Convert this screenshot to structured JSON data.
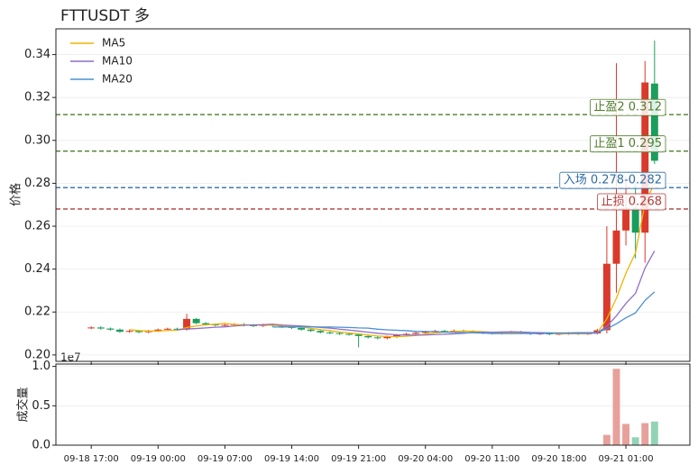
{
  "chart_data": {
    "type": "candlestick",
    "title": "FTTUSDT  多",
    "ylabel": "价格",
    "up_color": "#d93a2b",
    "down_color": "#1a9e5c",
    "grid": true,
    "legend": "upper left",
    "categories": [
      "09-18 17:00",
      "09-18 18:00",
      "09-18 19:00",
      "09-18 20:00",
      "09-18 21:00",
      "09-18 22:00",
      "09-18 23:00",
      "09-19 00:00",
      "09-19 01:00",
      "09-19 02:00",
      "09-19 03:00",
      "09-19 04:00",
      "09-19 05:00",
      "09-19 06:00",
      "09-19 07:00",
      "09-19 08:00",
      "09-19 09:00",
      "09-19 10:00",
      "09-19 11:00",
      "09-19 12:00",
      "09-19 13:00",
      "09-19 14:00",
      "09-19 15:00",
      "09-19 16:00",
      "09-19 17:00",
      "09-19 18:00",
      "09-19 19:00",
      "09-19 20:00",
      "09-19 21:00",
      "09-19 22:00",
      "09-19 23:00",
      "09-20 00:00",
      "09-20 01:00",
      "09-20 02:00",
      "09-20 03:00",
      "09-20 04:00",
      "09-20 05:00",
      "09-20 06:00",
      "09-20 07:00",
      "09-20 08:00",
      "09-20 09:00",
      "09-20 10:00",
      "09-20 11:00",
      "09-20 12:00",
      "09-20 13:00",
      "09-20 14:00",
      "09-20 15:00",
      "09-20 16:00",
      "09-20 17:00",
      "09-20 18:00",
      "09-20 19:00",
      "09-20 20:00",
      "09-20 21:00",
      "09-20 22:00",
      "09-20 23:00",
      "09-21 00:00",
      "09-21 01:00",
      "09-21 02:00",
      "09-21 03:00",
      "09-21 04:00"
    ],
    "xticks": [
      "09-18 17:00",
      "09-19 00:00",
      "09-19 07:00",
      "09-19 14:00",
      "09-19 21:00",
      "09-20 04:00",
      "09-20 11:00",
      "09-20 18:00",
      "09-21 01:00"
    ],
    "open": [
      0.2125,
      0.2128,
      0.2123,
      0.2118,
      0.2108,
      0.2112,
      0.2106,
      0.2112,
      0.2118,
      0.2122,
      0.2118,
      0.2168,
      0.2148,
      0.2142,
      0.2138,
      0.214,
      0.2143,
      0.2138,
      0.2135,
      0.214,
      0.2136,
      0.213,
      0.2126,
      0.2118,
      0.2112,
      0.2105,
      0.2102,
      0.2098,
      0.2095,
      0.2088,
      0.2082,
      0.2078,
      0.2085,
      0.2092,
      0.2098,
      0.2103,
      0.2108,
      0.2112,
      0.211,
      0.2113,
      0.211,
      0.2106,
      0.2102,
      0.21,
      0.2104,
      0.2107,
      0.2102,
      0.2098,
      0.21,
      0.2097,
      0.2099,
      0.2101,
      0.2098,
      0.21,
      0.2115,
      0.2425,
      0.258,
      0.2685,
      0.257,
      0.3265
    ],
    "high": [
      0.2133,
      0.2133,
      0.2128,
      0.2123,
      0.2117,
      0.2117,
      0.2117,
      0.2123,
      0.2127,
      0.2127,
      0.2192,
      0.2172,
      0.2153,
      0.2147,
      0.2145,
      0.2148,
      0.2148,
      0.2143,
      0.2145,
      0.2145,
      0.2141,
      0.2135,
      0.2131,
      0.2123,
      0.2117,
      0.211,
      0.2107,
      0.2103,
      0.21,
      0.2093,
      0.2087,
      0.209,
      0.2097,
      0.2103,
      0.2108,
      0.2113,
      0.2117,
      0.2117,
      0.2118,
      0.2118,
      0.2115,
      0.2111,
      0.2107,
      0.2109,
      0.2112,
      0.2112,
      0.2107,
      0.2105,
      0.2105,
      0.2104,
      0.2106,
      0.2106,
      0.2105,
      0.2122,
      0.26,
      0.336,
      0.283,
      0.28,
      0.337,
      0.3465
    ],
    "low": [
      0.212,
      0.2118,
      0.2113,
      0.2103,
      0.2103,
      0.2101,
      0.2101,
      0.2107,
      0.2113,
      0.2113,
      0.2113,
      0.2143,
      0.2137,
      0.2133,
      0.2133,
      0.2135,
      0.2133,
      0.213,
      0.213,
      0.2131,
      0.2125,
      0.2121,
      0.2113,
      0.2107,
      0.21,
      0.2097,
      0.2093,
      0.209,
      0.2035,
      0.2077,
      0.2073,
      0.2073,
      0.208,
      0.2087,
      0.2093,
      0.2098,
      0.2103,
      0.2105,
      0.2105,
      0.2105,
      0.2101,
      0.2097,
      0.2095,
      0.2095,
      0.2099,
      0.2097,
      0.2093,
      0.2093,
      0.2092,
      0.2092,
      0.2094,
      0.2093,
      0.2093,
      0.2095,
      0.21,
      0.229,
      0.251,
      0.245,
      0.243,
      0.289
    ],
    "close": [
      0.2128,
      0.2123,
      0.2118,
      0.2108,
      0.2112,
      0.2106,
      0.2112,
      0.2118,
      0.2122,
      0.2118,
      0.2168,
      0.2148,
      0.2142,
      0.2138,
      0.214,
      0.2143,
      0.2138,
      0.2135,
      0.214,
      0.2136,
      0.213,
      0.2126,
      0.2118,
      0.2112,
      0.2105,
      0.2102,
      0.2098,
      0.2095,
      0.2088,
      0.2082,
      0.2078,
      0.2085,
      0.2092,
      0.2098,
      0.2103,
      0.2108,
      0.2112,
      0.211,
      0.2113,
      0.211,
      0.2106,
      0.2102,
      0.21,
      0.2104,
      0.2107,
      0.2102,
      0.2098,
      0.21,
      0.2097,
      0.2099,
      0.2101,
      0.2098,
      0.21,
      0.2115,
      0.2425,
      0.258,
      0.2685,
      0.257,
      0.327,
      0.2905
    ],
    "series": [
      {
        "name": "MA5",
        "color": "#f0b400",
        "values": [
          null,
          null,
          null,
          null,
          0.2118,
          0.2113,
          0.2111,
          0.2111,
          0.2114,
          0.2115,
          0.2128,
          0.2135,
          0.214,
          0.2143,
          0.2147,
          0.2142,
          0.214,
          0.2139,
          0.2139,
          0.2138,
          0.2136,
          0.2133,
          0.213,
          0.2124,
          0.2118,
          0.2113,
          0.2107,
          0.2102,
          0.2098,
          0.2093,
          0.2088,
          0.2086,
          0.2085,
          0.2087,
          0.2091,
          0.2097,
          0.2103,
          0.2106,
          0.2109,
          0.2111,
          0.211,
          0.2108,
          0.2106,
          0.2104,
          0.2104,
          0.2103,
          0.2102,
          0.2102,
          0.2101,
          0.2099,
          0.2099,
          0.2099,
          0.2099,
          0.2103,
          0.2168,
          0.2264,
          0.2381,
          0.2475,
          0.2706,
          0.2802
        ]
      },
      {
        "name": "MA10",
        "color": "#8e6fc8",
        "values": [
          null,
          null,
          null,
          null,
          null,
          null,
          null,
          null,
          null,
          0.2117,
          0.2121,
          0.2123,
          0.2126,
          0.2129,
          0.2131,
          0.2135,
          0.2138,
          0.214,
          0.2141,
          0.2143,
          0.2139,
          0.2137,
          0.2135,
          0.2132,
          0.2128,
          0.2125,
          0.212,
          0.2116,
          0.2111,
          0.2106,
          0.2101,
          0.2097,
          0.2094,
          0.2093,
          0.2092,
          0.2093,
          0.2095,
          0.2096,
          0.2098,
          0.2101,
          0.2104,
          0.2106,
          0.2106,
          0.2107,
          0.2108,
          0.2107,
          0.2105,
          0.2104,
          0.2103,
          0.2102,
          0.2101,
          0.2101,
          0.2101,
          0.2102,
          0.2134,
          0.2182,
          0.224,
          0.2287,
          0.2405,
          0.2485
        ]
      },
      {
        "name": "MA20",
        "color": "#4a8fd4",
        "values": [
          null,
          null,
          null,
          null,
          null,
          null,
          null,
          null,
          null,
          null,
          null,
          null,
          null,
          null,
          null,
          null,
          null,
          null,
          null,
          0.213,
          0.213,
          0.213,
          0.2131,
          0.2131,
          0.213,
          0.213,
          0.2129,
          0.2128,
          0.2126,
          0.2125,
          0.212,
          0.2117,
          0.2115,
          0.2113,
          0.211,
          0.2109,
          0.2108,
          0.2106,
          0.2105,
          0.2104,
          0.2103,
          0.2102,
          0.21,
          0.21,
          0.21,
          0.21,
          0.21,
          0.21,
          0.2101,
          0.2102,
          0.2103,
          0.2104,
          0.2104,
          0.2105,
          0.2121,
          0.2145,
          0.2173,
          0.2196,
          0.2254,
          0.2294
        ]
      }
    ],
    "levels": [
      {
        "label": "止盈2 0.312",
        "value": 0.312,
        "color": "#4e7d2b"
      },
      {
        "label": "止盈1 0.295",
        "value": 0.295,
        "color": "#4e7d2b"
      },
      {
        "label": "入场 0.278-0.282",
        "value": 0.278,
        "color": "#2e6da4"
      },
      {
        "label": "止损 0.268",
        "value": 0.268,
        "color": "#b03a3a"
      }
    ],
    "ylim": [
      0.197,
      0.352
    ],
    "yticks": [
      {
        "value": 0.2,
        "label": "0.20"
      },
      {
        "value": 0.22,
        "label": "0.22"
      },
      {
        "value": 0.24,
        "label": "0.24"
      },
      {
        "value": 0.26,
        "label": "0.26"
      },
      {
        "value": 0.28,
        "label": "0.28"
      },
      {
        "value": 0.3,
        "label": "0.30"
      },
      {
        "value": 0.32,
        "label": "0.32"
      },
      {
        "value": 0.34,
        "label": "0.34"
      }
    ],
    "volume": {
      "ylabel": "成交量",
      "offset_label": "1e7",
      "up_color": "#e8a09a",
      "down_color": "#92d3b5",
      "ylim": [
        0,
        1.03
      ],
      "yticks": [
        {
          "value": 0,
          "label": "0.0"
        },
        {
          "value": 0.5,
          "label": "0.5"
        },
        {
          "value": 1.0,
          "label": "1.0"
        }
      ],
      "values": [
        0.004,
        0.003,
        0.003,
        0.004,
        0.003,
        0.003,
        0.003,
        0.003,
        0.003,
        0.003,
        0.006,
        0.004,
        0.003,
        0.003,
        0.003,
        0.003,
        0.003,
        0.003,
        0.003,
        0.003,
        0.003,
        0.003,
        0.003,
        0.003,
        0.003,
        0.003,
        0.003,
        0.003,
        0.006,
        0.003,
        0.003,
        0.003,
        0.003,
        0.003,
        0.003,
        0.003,
        0.003,
        0.003,
        0.003,
        0.003,
        0.003,
        0.003,
        0.003,
        0.003,
        0.003,
        0.003,
        0.003,
        0.003,
        0.003,
        0.003,
        0.003,
        0.003,
        0.003,
        0.004,
        0.13,
        0.97,
        0.27,
        0.1,
        0.28,
        0.3
      ]
    }
  }
}
